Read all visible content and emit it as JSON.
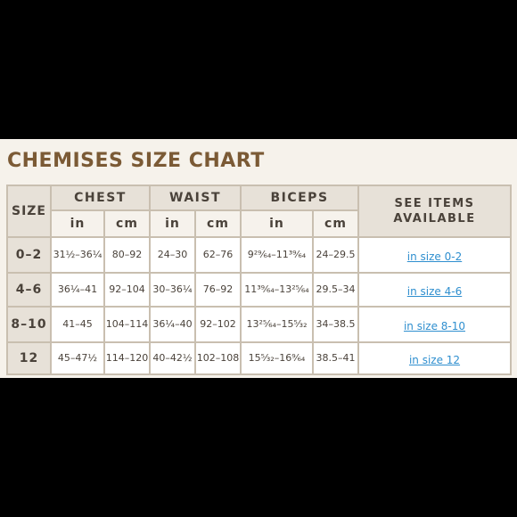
{
  "title": "CHEMISES SIZE CHART",
  "headers": {
    "size": "SIZE",
    "chest": "CHEST",
    "waist": "WAIST",
    "biceps": "BICEPS",
    "see_items_line1": "SEE ITEMS",
    "see_items_line2": "AVAILABLE",
    "in": "in",
    "cm": "cm"
  },
  "rows": [
    {
      "size": "0–2",
      "chest_in": "31½–36¼",
      "chest_cm": "80–92",
      "waist_in": "24–30",
      "waist_cm": "62–76",
      "biceps_in": "9²⁹⁄₆₄–11³⁹⁄₆₄",
      "biceps_cm": "24–29.5",
      "link": "in size 0-2"
    },
    {
      "size": "4–6",
      "chest_in": "36¼–41",
      "chest_cm": "92–104",
      "waist_in": "30–36¼",
      "waist_cm": "76–92",
      "biceps_in": "11³⁹⁄₆₄–13²⁵⁄₆₄",
      "biceps_cm": "29.5–34",
      "link": "in size 4-6"
    },
    {
      "size": "8–10",
      "chest_in": "41–45",
      "chest_cm": "104–114",
      "waist_in": "36¼–40",
      "waist_cm": "92–102",
      "biceps_in": "13²⁵⁄₆₄–15⁵⁄₃₂",
      "biceps_cm": "34–38.5",
      "link": "in size 8-10"
    },
    {
      "size": "12",
      "chest_in": "45–47½",
      "chest_cm": "114–120",
      "waist_in": "40–42½",
      "waist_cm": "102–108",
      "biceps_in": "15⁵⁄₃₂–16⁹⁄₆₄",
      "biceps_cm": "38.5–41",
      "link": "in size 12"
    }
  ]
}
